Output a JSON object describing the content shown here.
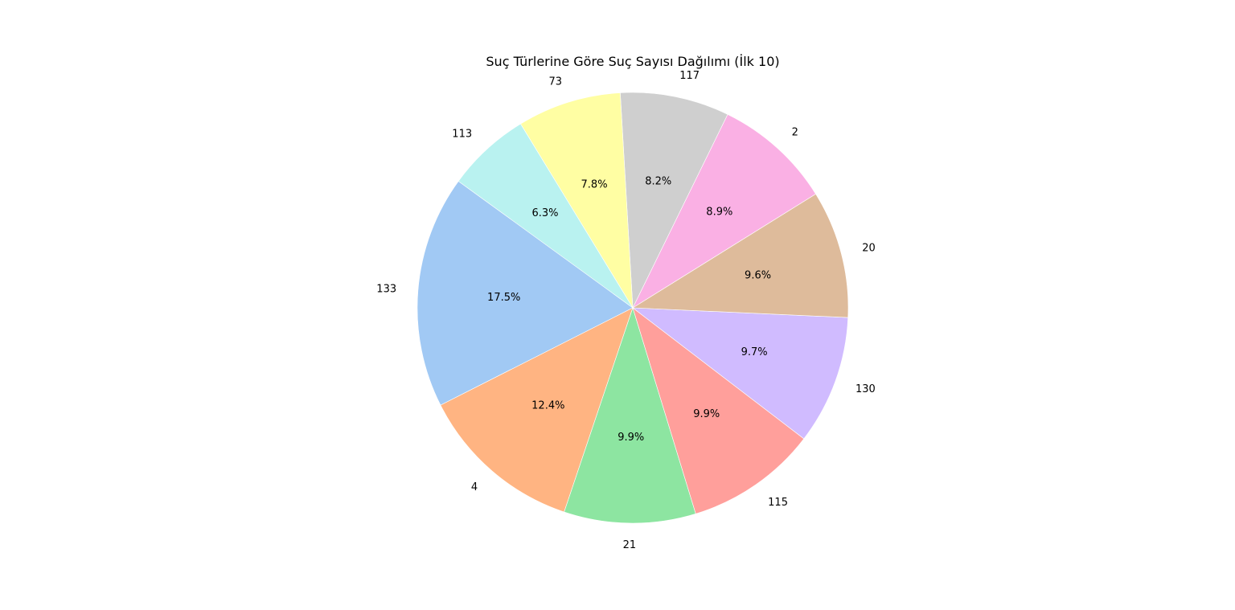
{
  "chart_data": {
    "type": "pie",
    "title": "Suç Türlerine Göre Suç Sayısı Dağılımı (İlk 10)",
    "start_angle_deg": 144,
    "direction": "counterclockwise",
    "slices": [
      {
        "label": "133",
        "percent": 17.5,
        "percent_label": "17.5%",
        "color": "#a1c9f4"
      },
      {
        "label": "4",
        "percent": 12.4,
        "percent_label": "12.4%",
        "color": "#ffb482"
      },
      {
        "label": "21",
        "percent": 9.9,
        "percent_label": "9.9%",
        "color": "#8de5a1"
      },
      {
        "label": "115",
        "percent": 9.9,
        "percent_label": "9.9%",
        "color": "#ff9f9b"
      },
      {
        "label": "130",
        "percent": 9.7,
        "percent_label": "9.7%",
        "color": "#d0bbff"
      },
      {
        "label": "20",
        "percent": 9.6,
        "percent_label": "9.6%",
        "color": "#debb9b"
      },
      {
        "label": "2",
        "percent": 8.9,
        "percent_label": "8.9%",
        "color": "#fab0e4"
      },
      {
        "label": "117",
        "percent": 8.2,
        "percent_label": "8.2%",
        "color": "#cfcfcf"
      },
      {
        "label": "73",
        "percent": 7.8,
        "percent_label": "7.8%",
        "color": "#fffea3"
      },
      {
        "label": "113",
        "percent": 6.3,
        "percent_label": "6.3%",
        "color": "#b9f2f0"
      }
    ]
  }
}
